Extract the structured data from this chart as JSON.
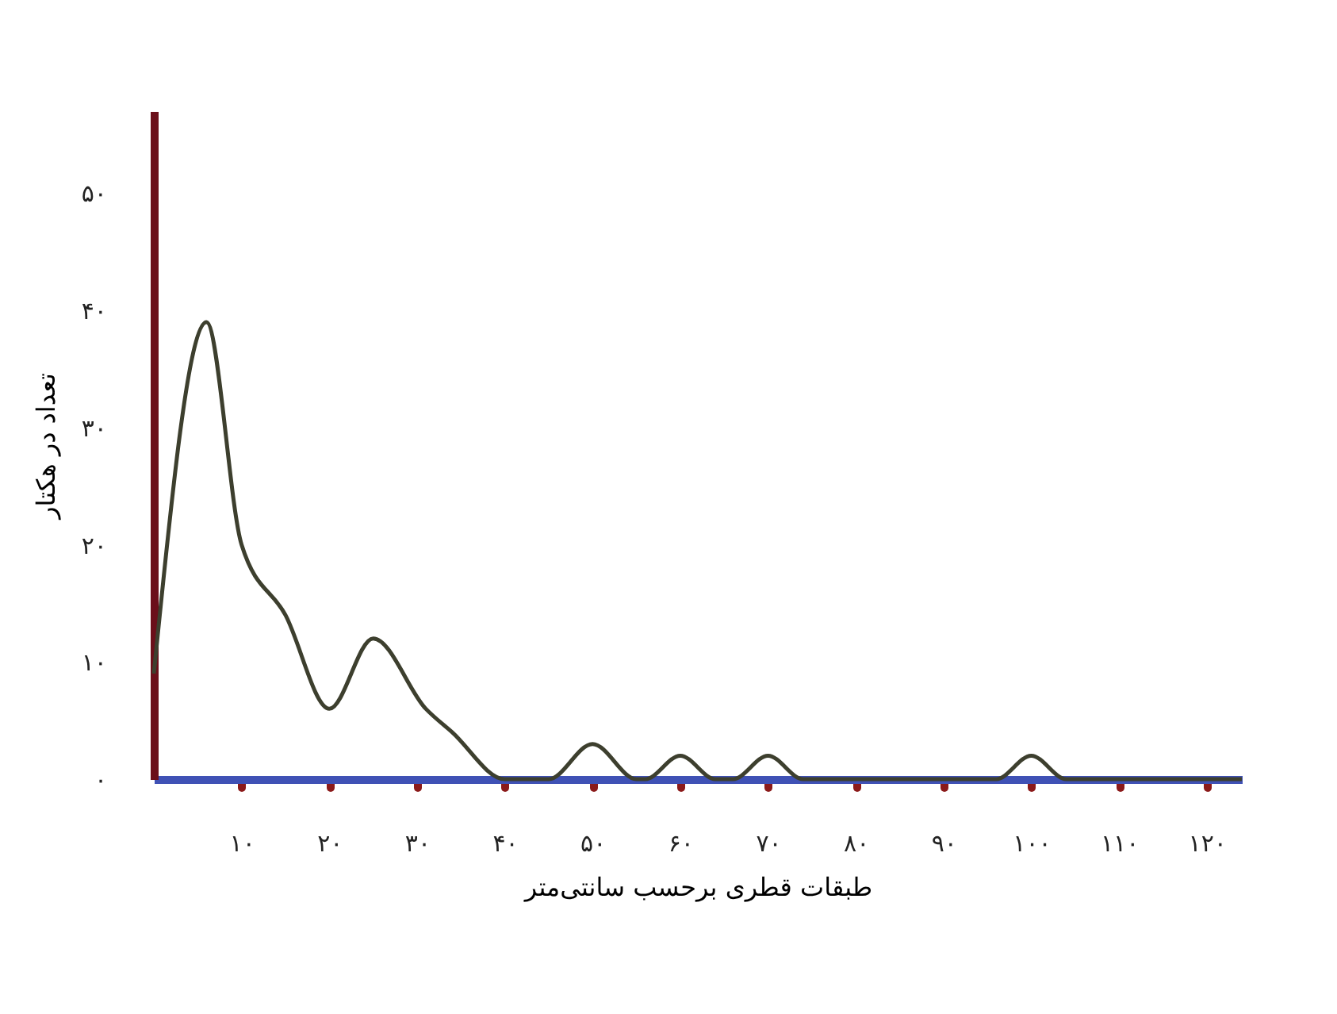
{
  "chart_data": {
    "type": "line",
    "xlabel": "طبقات قطری برحسب سانتی‌متر",
    "ylabel": "تعداد در هکتار",
    "x": [
      0,
      6,
      10,
      15,
      20,
      25,
      31,
      34,
      40,
      45,
      50,
      55,
      56,
      60,
      64,
      66,
      70,
      74,
      96,
      100,
      104,
      124
    ],
    "series": [
      {
        "color": "#3d3f2e",
        "values": [
          9,
          39,
          20,
          14,
          6,
          12,
          6,
          4,
          0,
          0,
          3,
          0,
          0,
          2,
          0,
          0,
          2,
          0,
          0,
          2,
          0,
          0
        ]
      }
    ],
    "xlim": [
      0,
      124
    ],
    "ylim": [
      0,
      57
    ],
    "xticks": [
      {
        "value": 10,
        "label": "۱۰"
      },
      {
        "value": 20,
        "label": "۲۰"
      },
      {
        "value": 30,
        "label": "۳۰"
      },
      {
        "value": 40,
        "label": "۴۰"
      },
      {
        "value": 50,
        "label": "۵۰"
      },
      {
        "value": 60,
        "label": "۶۰"
      },
      {
        "value": 70,
        "label": "۷۰"
      },
      {
        "value": 80,
        "label": "۸۰"
      },
      {
        "value": 90,
        "label": "۹۰"
      },
      {
        "value": 100,
        "label": "۱۰۰"
      },
      {
        "value": 110,
        "label": "۱۱۰"
      },
      {
        "value": 120,
        "label": "۱۲۰"
      }
    ],
    "yticks": [
      {
        "value": 0,
        "label": "۰"
      },
      {
        "value": 10,
        "label": "۱۰"
      },
      {
        "value": 20,
        "label": "۲۰"
      },
      {
        "value": 30,
        "label": "۳۰"
      },
      {
        "value": 40,
        "label": "۴۰"
      },
      {
        "value": 50,
        "label": "۵۰"
      }
    ],
    "grid": false,
    "legend": false,
    "marker": "none",
    "line_style": "solid"
  }
}
